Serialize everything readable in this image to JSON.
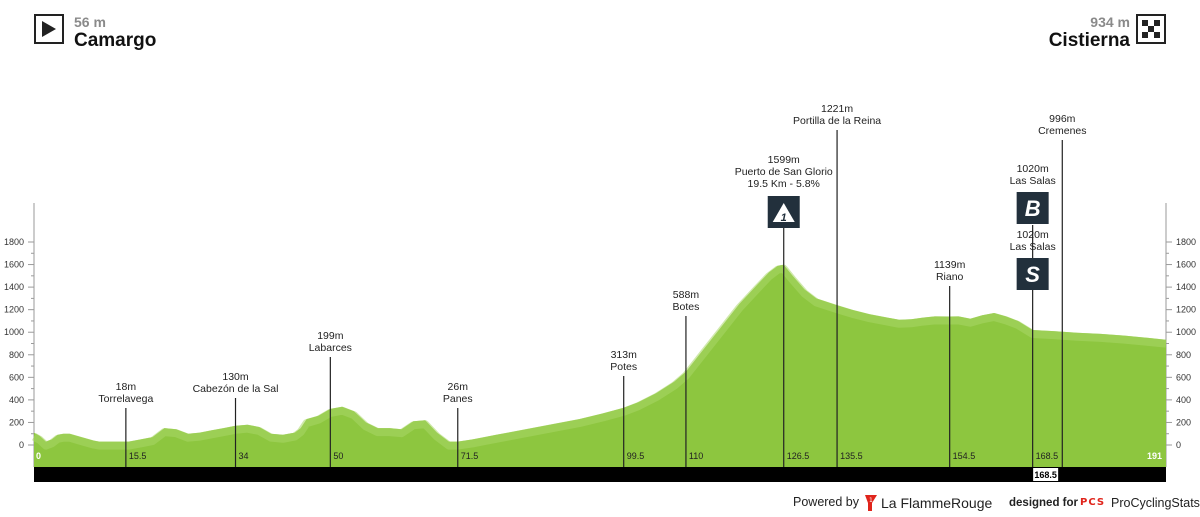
{
  "header": {
    "start": {
      "altitude": "56 m",
      "name": "Camargo"
    },
    "finish": {
      "altitude": "934 m",
      "name": "Cistierna"
    }
  },
  "footer": {
    "powered_by": "Powered by",
    "flamme_rouge": "La FlammeRouge",
    "designed_for": "designed for",
    "pcs_logo": "PCS",
    "pcs_name": "ProCyclingStats"
  },
  "chart_data": {
    "type": "area",
    "title": "",
    "xlabel": "",
    "ylabel": "",
    "xlim": [
      0,
      191
    ],
    "ylim": [
      0,
      1800
    ],
    "y_ticks": [
      0,
      200,
      400,
      600,
      800,
      1000,
      1200,
      1400,
      1600,
      1800
    ],
    "x_ticks": [
      "0",
      "15.5",
      "34",
      "50",
      "71.5",
      "99.5",
      "110",
      "126.5",
      "135.5",
      "154.5",
      "168.5",
      "191"
    ],
    "bar_marker": "168.5",
    "colors": {
      "profile": "#8dc63f",
      "profile_light": "#a9d767",
      "base_bar": "#000000",
      "badge": "#22303c"
    },
    "profile": {
      "x": [
        0,
        1,
        2,
        3,
        4,
        5,
        6,
        8,
        10,
        11,
        12,
        14,
        15.5,
        16,
        18,
        20,
        22,
        24,
        26,
        28,
        30,
        32,
        34,
        36,
        38,
        40,
        42,
        44,
        45,
        46,
        48,
        50,
        52,
        54,
        56,
        58,
        60,
        62,
        64,
        66,
        68,
        70,
        71.5,
        74,
        76,
        78,
        80,
        84,
        88,
        92,
        96,
        99.5,
        102,
        105,
        108,
        110,
        113,
        116,
        119,
        122,
        124,
        125.5,
        126.5,
        128,
        130,
        132,
        135.5,
        138,
        141,
        144,
        146,
        148,
        150,
        152,
        154.5,
        156,
        158,
        160,
        162,
        164,
        166,
        168.5,
        172,
        176,
        180,
        184,
        188,
        191
      ],
      "y": [
        110,
        80,
        30,
        50,
        90,
        100,
        100,
        70,
        40,
        30,
        30,
        30,
        30,
        30,
        50,
        70,
        150,
        140,
        100,
        110,
        130,
        150,
        170,
        180,
        160,
        100,
        90,
        110,
        150,
        230,
        260,
        320,
        340,
        300,
        200,
        150,
        150,
        140,
        210,
        220,
        110,
        30,
        30,
        50,
        70,
        90,
        110,
        150,
        190,
        230,
        280,
        330,
        380,
        460,
        560,
        650,
        850,
        1050,
        1250,
        1420,
        1530,
        1590,
        1599,
        1500,
        1380,
        1300,
        1240,
        1200,
        1160,
        1130,
        1110,
        1115,
        1130,
        1140,
        1139,
        1140,
        1120,
        1150,
        1170,
        1140,
        1100,
        1020,
        1010,
        995,
        985,
        970,
        950,
        934
      ]
    },
    "annotations": [
      {
        "x": 15.5,
        "alt": "18m",
        "name": "Torrelavega"
      },
      {
        "x": 34,
        "alt": "130m",
        "name": "Cabezón de la Sal"
      },
      {
        "x": 50,
        "alt": "199m",
        "name": "Labarces"
      },
      {
        "x": 71.5,
        "alt": "26m",
        "name": "Panes"
      },
      {
        "x": 99.5,
        "alt": "313m",
        "name": "Potes"
      },
      {
        "x": 110,
        "alt": "588m",
        "name": "Botes"
      },
      {
        "x": 126.5,
        "alt": "1599m",
        "name": "Puerto de San Glorio",
        "extra": "19.5 Km - 5.8%",
        "badge": "1"
      },
      {
        "x": 135.5,
        "alt": "1221m",
        "name": "Portilla de la Reina"
      },
      {
        "x": 154.5,
        "alt": "1139m",
        "name": "Riano"
      },
      {
        "x": 168.5,
        "alt": "1020m",
        "name": "Las Salas",
        "badge": "B"
      },
      {
        "x": 168.5,
        "alt": "1020m",
        "name": "Las Salas",
        "badge": "S"
      },
      {
        "x": 173.5,
        "alt": "996m",
        "name": "Cremenes"
      }
    ]
  }
}
